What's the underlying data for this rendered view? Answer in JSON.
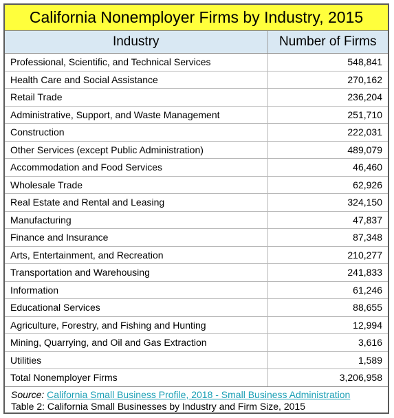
{
  "title": "California Nonemployer Firms by Industry, 2015",
  "table": {
    "headers": [
      "Industry",
      "Number of Firms"
    ],
    "rows": [
      {
        "industry": "Professional, Scientific, and Technical Services",
        "firms": "548,841"
      },
      {
        "industry": "Health Care and Social Assistance",
        "firms": "270,162"
      },
      {
        "industry": "Retail Trade",
        "firms": "236,204"
      },
      {
        "industry": "Administrative, Support, and Waste Management",
        "firms": "251,710"
      },
      {
        "industry": "Construction",
        "firms": "222,031"
      },
      {
        "industry": "Other Services (except Public Administration)",
        "firms": "489,079"
      },
      {
        "industry": "Accommodation and Food Services",
        "firms": "46,460"
      },
      {
        "industry": "Wholesale Trade",
        "firms": "62,926"
      },
      {
        "industry": "Real Estate and Rental and Leasing",
        "firms": "324,150"
      },
      {
        "industry": "Manufacturing",
        "firms": "47,837"
      },
      {
        "industry": "Finance and Insurance",
        "firms": "87,348"
      },
      {
        "industry": "Arts, Entertainment, and Recreation",
        "firms": "210,277"
      },
      {
        "industry": "Transportation and Warehousing",
        "firms": "241,833"
      },
      {
        "industry": "Information",
        "firms": "61,246"
      },
      {
        "industry": "Educational Services",
        "firms": "88,655"
      },
      {
        "industry": "Agriculture, Forestry, and Fishing and Hunting",
        "firms": "12,994"
      },
      {
        "industry": "Mining, Quarrying, and Oil and Gas Extraction",
        "firms": "3,616"
      },
      {
        "industry": "Utilities",
        "firms": "1,589"
      }
    ],
    "total": {
      "industry": "Total Nonemployer Firms",
      "firms": "3,206,958"
    }
  },
  "footer": {
    "source_label": "Source:",
    "source_link": "California Small Business Profile, 2018 - Small Business Administration",
    "caption": "Table 2: California Small Businesses by Industry and Firm Size, 2015"
  },
  "colors": {
    "title_bg": "#ffff3c",
    "header_bg": "#d9e8f3",
    "link": "#1a9fb5"
  }
}
